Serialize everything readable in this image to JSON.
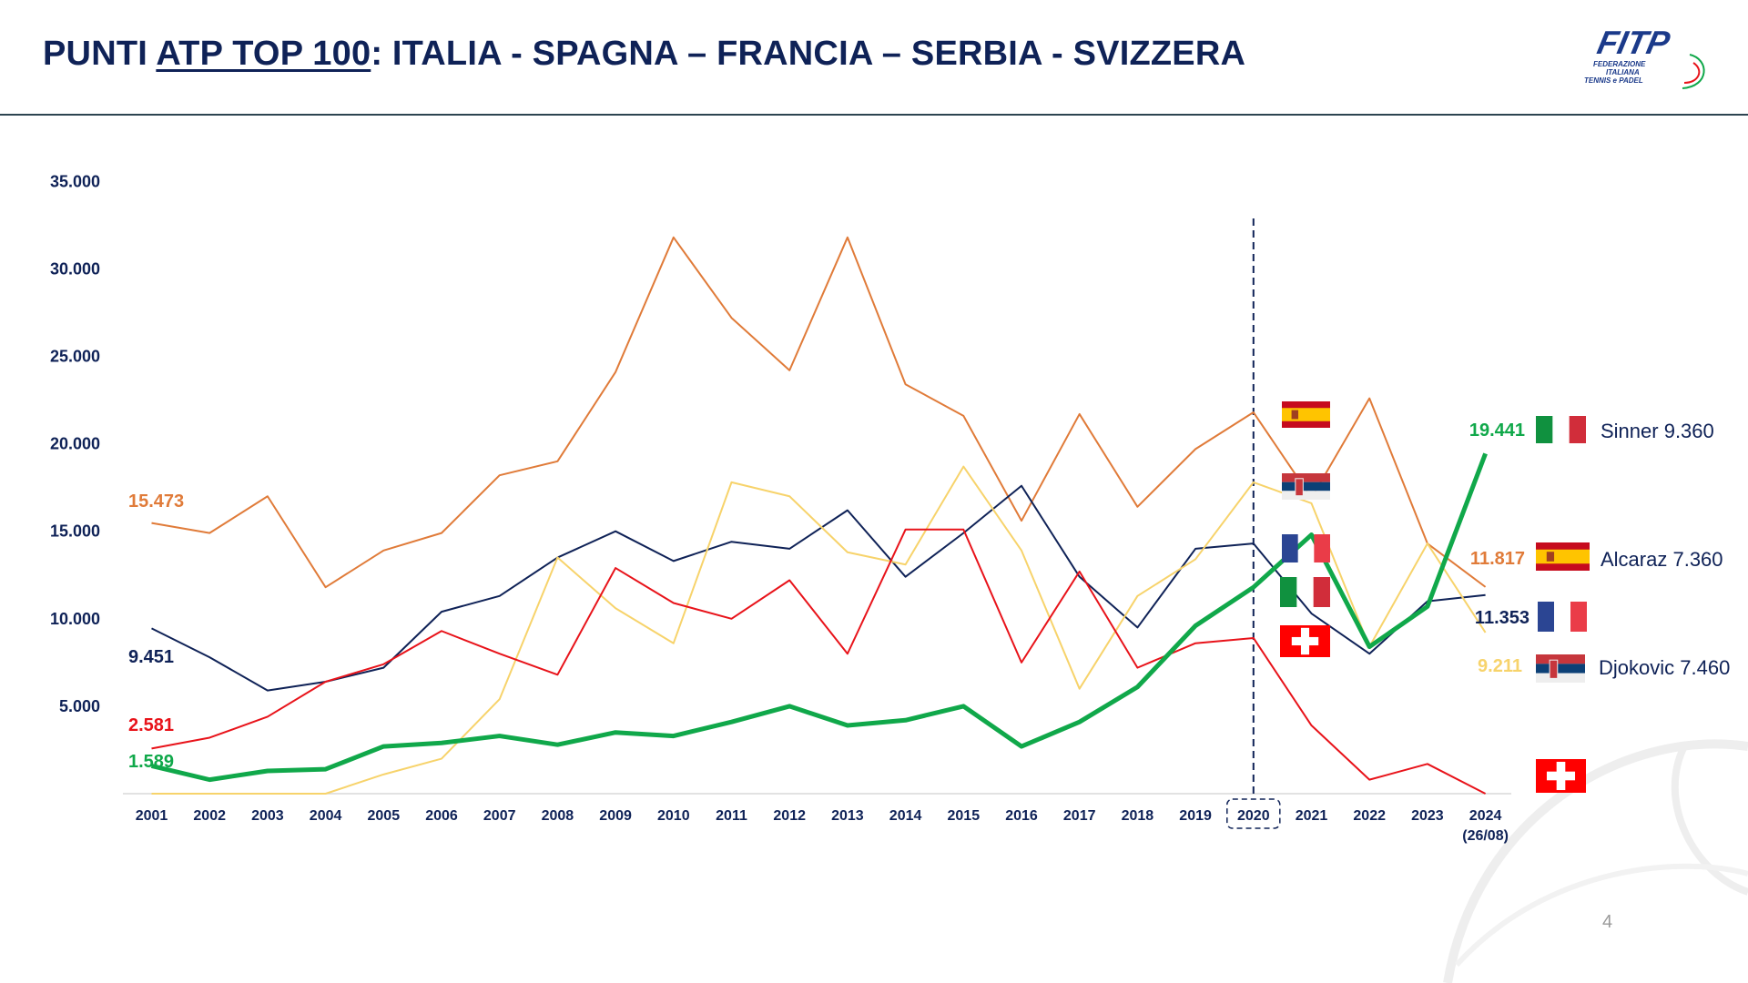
{
  "header": {
    "title_prefix": "PUNTI ",
    "title_underlined": "ATP TOP 100",
    "title_suffix": ": ITALIA - SPAGNA – FRANCIA – SERBIA - SVIZZERA",
    "logo_text": "FITP FEDERAZIONE ITALIANA TENNIS e PADEL"
  },
  "page_number": "4",
  "chart_data": {
    "type": "line",
    "title": "PUNTI ATP TOP 100: ITALIA - SPAGNA – FRANCIA – SERBIA - SVIZZERA",
    "xlabel": "",
    "ylabel": "",
    "ylim": [
      0,
      35000
    ],
    "yticks": [
      "5.000",
      "10.000",
      "15.000",
      "20.000",
      "25.000",
      "30.000",
      "35.000"
    ],
    "ytick_values": [
      5000,
      10000,
      15000,
      20000,
      25000,
      30000,
      35000
    ],
    "categories": [
      "2001",
      "2002",
      "2003",
      "2004",
      "2005",
      "2006",
      "2007",
      "2008",
      "2009",
      "2010",
      "2011",
      "2012",
      "2013",
      "2014",
      "2015",
      "2016",
      "2017",
      "2018",
      "2019",
      "2020",
      "2021",
      "2022",
      "2023",
      "2024"
    ],
    "last_category_note": "(26/08)",
    "highlight_category": "2020",
    "grid": false,
    "series": [
      {
        "name": "Spagna",
        "color": "#e07b39",
        "width": 2,
        "values": [
          15473,
          14900,
          17000,
          11800,
          13900,
          14900,
          18200,
          19000,
          24100,
          31800,
          27200,
          24200,
          31800,
          23400,
          21600,
          15600,
          21700,
          16400,
          19700,
          21800,
          16900,
          22600,
          14300,
          11817
        ],
        "start_label": "15.473",
        "end_label": "11.817"
      },
      {
        "name": "Francia",
        "color": "#0f2257",
        "width": 2,
        "values": [
          9451,
          7800,
          5900,
          6400,
          7200,
          10400,
          11300,
          13500,
          15000,
          13300,
          14400,
          14000,
          16200,
          12400,
          14900,
          17600,
          12400,
          9500,
          14000,
          14300,
          10300,
          8000,
          11000,
          11353
        ],
        "start_label": "9.451",
        "end_label": "11.353"
      },
      {
        "name": "Serbia",
        "color": "#f7d36b",
        "width": 2,
        "values": [
          0,
          0,
          0,
          0,
          1100,
          2000,
          5400,
          13500,
          10600,
          8600,
          17800,
          17000,
          13800,
          13100,
          18700,
          13900,
          6000,
          11300,
          13400,
          17800,
          16600,
          8400,
          14300,
          9211
        ],
        "end_label": "9.211"
      },
      {
        "name": "Svizzera",
        "color": "#e8131a",
        "width": 2,
        "values": [
          2581,
          3200,
          4400,
          6400,
          7400,
          9300,
          8000,
          6800,
          12900,
          10900,
          10000,
          12200,
          8000,
          15100,
          15100,
          7500,
          12700,
          7200,
          8600,
          8900,
          3900,
          800,
          1700,
          0
        ],
        "start_label": "2.581"
      },
      {
        "name": "Italia",
        "color": "#10a84a",
        "width": 5,
        "values": [
          1589,
          800,
          1300,
          1400,
          2700,
          2900,
          3300,
          2800,
          3500,
          3300,
          4100,
          5000,
          3900,
          4200,
          5000,
          2700,
          4100,
          6100,
          9600,
          11800,
          14800,
          8400,
          10700,
          19441
        ],
        "start_label": "1.589",
        "end_label": "19.441"
      }
    ],
    "annotations": [
      {
        "country": "Italia",
        "player": "Sinner 9.360"
      },
      {
        "country": "Spagna",
        "player": "Alcaraz  7.360"
      },
      {
        "country": "Serbia",
        "player": "Djokovic  7.460"
      }
    ]
  }
}
